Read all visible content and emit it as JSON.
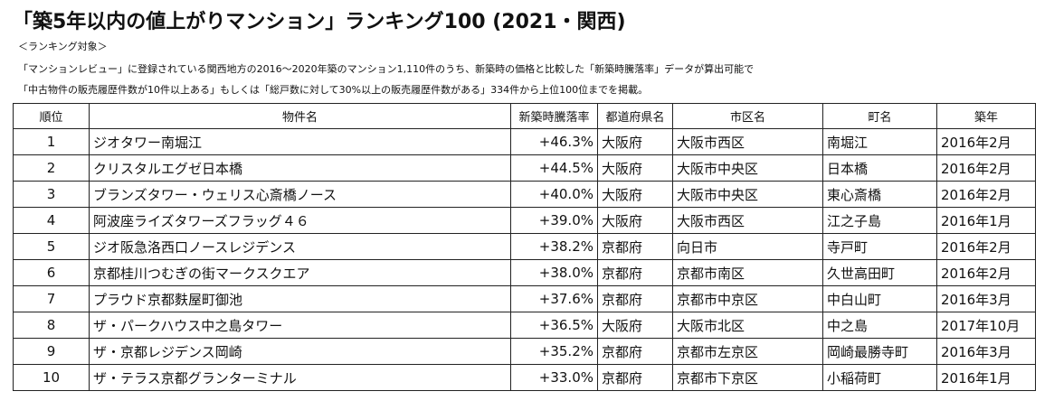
{
  "title": "「築5年以内の値上がりマンション」ランキング100 (2021・関西)",
  "notes": {
    "label": "＜ランキング対象＞",
    "line1": "「マンションレビュー」に登録されている関西地方の2016〜2020年築のマンション1,110件のうち、新築時の価格と比較した「新築時騰落率」データが算出可能で",
    "line2": "「中古物件の販売履歴件数が10件以上ある」もしくは「総戸数に対して30%以上の販売履歴件数がある」334件から上位100位までを掲載。"
  },
  "table": {
    "headers": {
      "rank": "順位",
      "name": "物件名",
      "rate": "新築時騰落率",
      "pref": "都道府県名",
      "city": "市区名",
      "town": "町名",
      "built": "築年"
    },
    "rows": [
      {
        "rank": "1",
        "name": "ジオタワー南堀江",
        "rate": "+46.3%",
        "pref": "大阪府",
        "city": "大阪市西区",
        "town": "南堀江",
        "built": "2016年2月"
      },
      {
        "rank": "2",
        "name": "クリスタルエグゼ日本橋",
        "rate": "+44.5%",
        "pref": "大阪府",
        "city": "大阪市中央区",
        "town": "日本橋",
        "built": "2016年2月"
      },
      {
        "rank": "3",
        "name": "ブランズタワー・ウェリス心斎橋ノース",
        "rate": "+40.0%",
        "pref": "大阪府",
        "city": "大阪市中央区",
        "town": "東心斎橋",
        "built": "2016年2月"
      },
      {
        "rank": "4",
        "name": "阿波座ライズタワーズフラッグ４６",
        "rate": "+39.0%",
        "pref": "大阪府",
        "city": "大阪市西区",
        "town": "江之子島",
        "built": "2016年1月"
      },
      {
        "rank": "5",
        "name": "ジオ阪急洛西口ノースレジデンス",
        "rate": "+38.2%",
        "pref": "京都府",
        "city": "向日市",
        "town": "寺戸町",
        "built": "2016年2月"
      },
      {
        "rank": "6",
        "name": "京都桂川つむぎの街マークスクエア",
        "rate": "+38.0%",
        "pref": "京都府",
        "city": "京都市南区",
        "town": "久世高田町",
        "built": "2016年2月"
      },
      {
        "rank": "7",
        "name": "プラウド京都麩屋町御池",
        "rate": "+37.6%",
        "pref": "京都府",
        "city": "京都市中京区",
        "town": "中白山町",
        "built": "2016年3月"
      },
      {
        "rank": "8",
        "name": "ザ・パークハウス中之島タワー",
        "rate": "+36.5%",
        "pref": "大阪府",
        "city": "大阪市北区",
        "town": "中之島",
        "built": "2017年10月"
      },
      {
        "rank": "9",
        "name": "ザ・京都レジデンス岡崎",
        "rate": "+35.2%",
        "pref": "京都府",
        "city": "京都市左京区",
        "town": "岡崎最勝寺町",
        "built": "2016年3月"
      },
      {
        "rank": "10",
        "name": "ザ・テラス京都グランターミナル",
        "rate": "+33.0%",
        "pref": "京都府",
        "city": "京都市下京区",
        "town": "小稲荷町",
        "built": "2016年1月"
      }
    ]
  }
}
